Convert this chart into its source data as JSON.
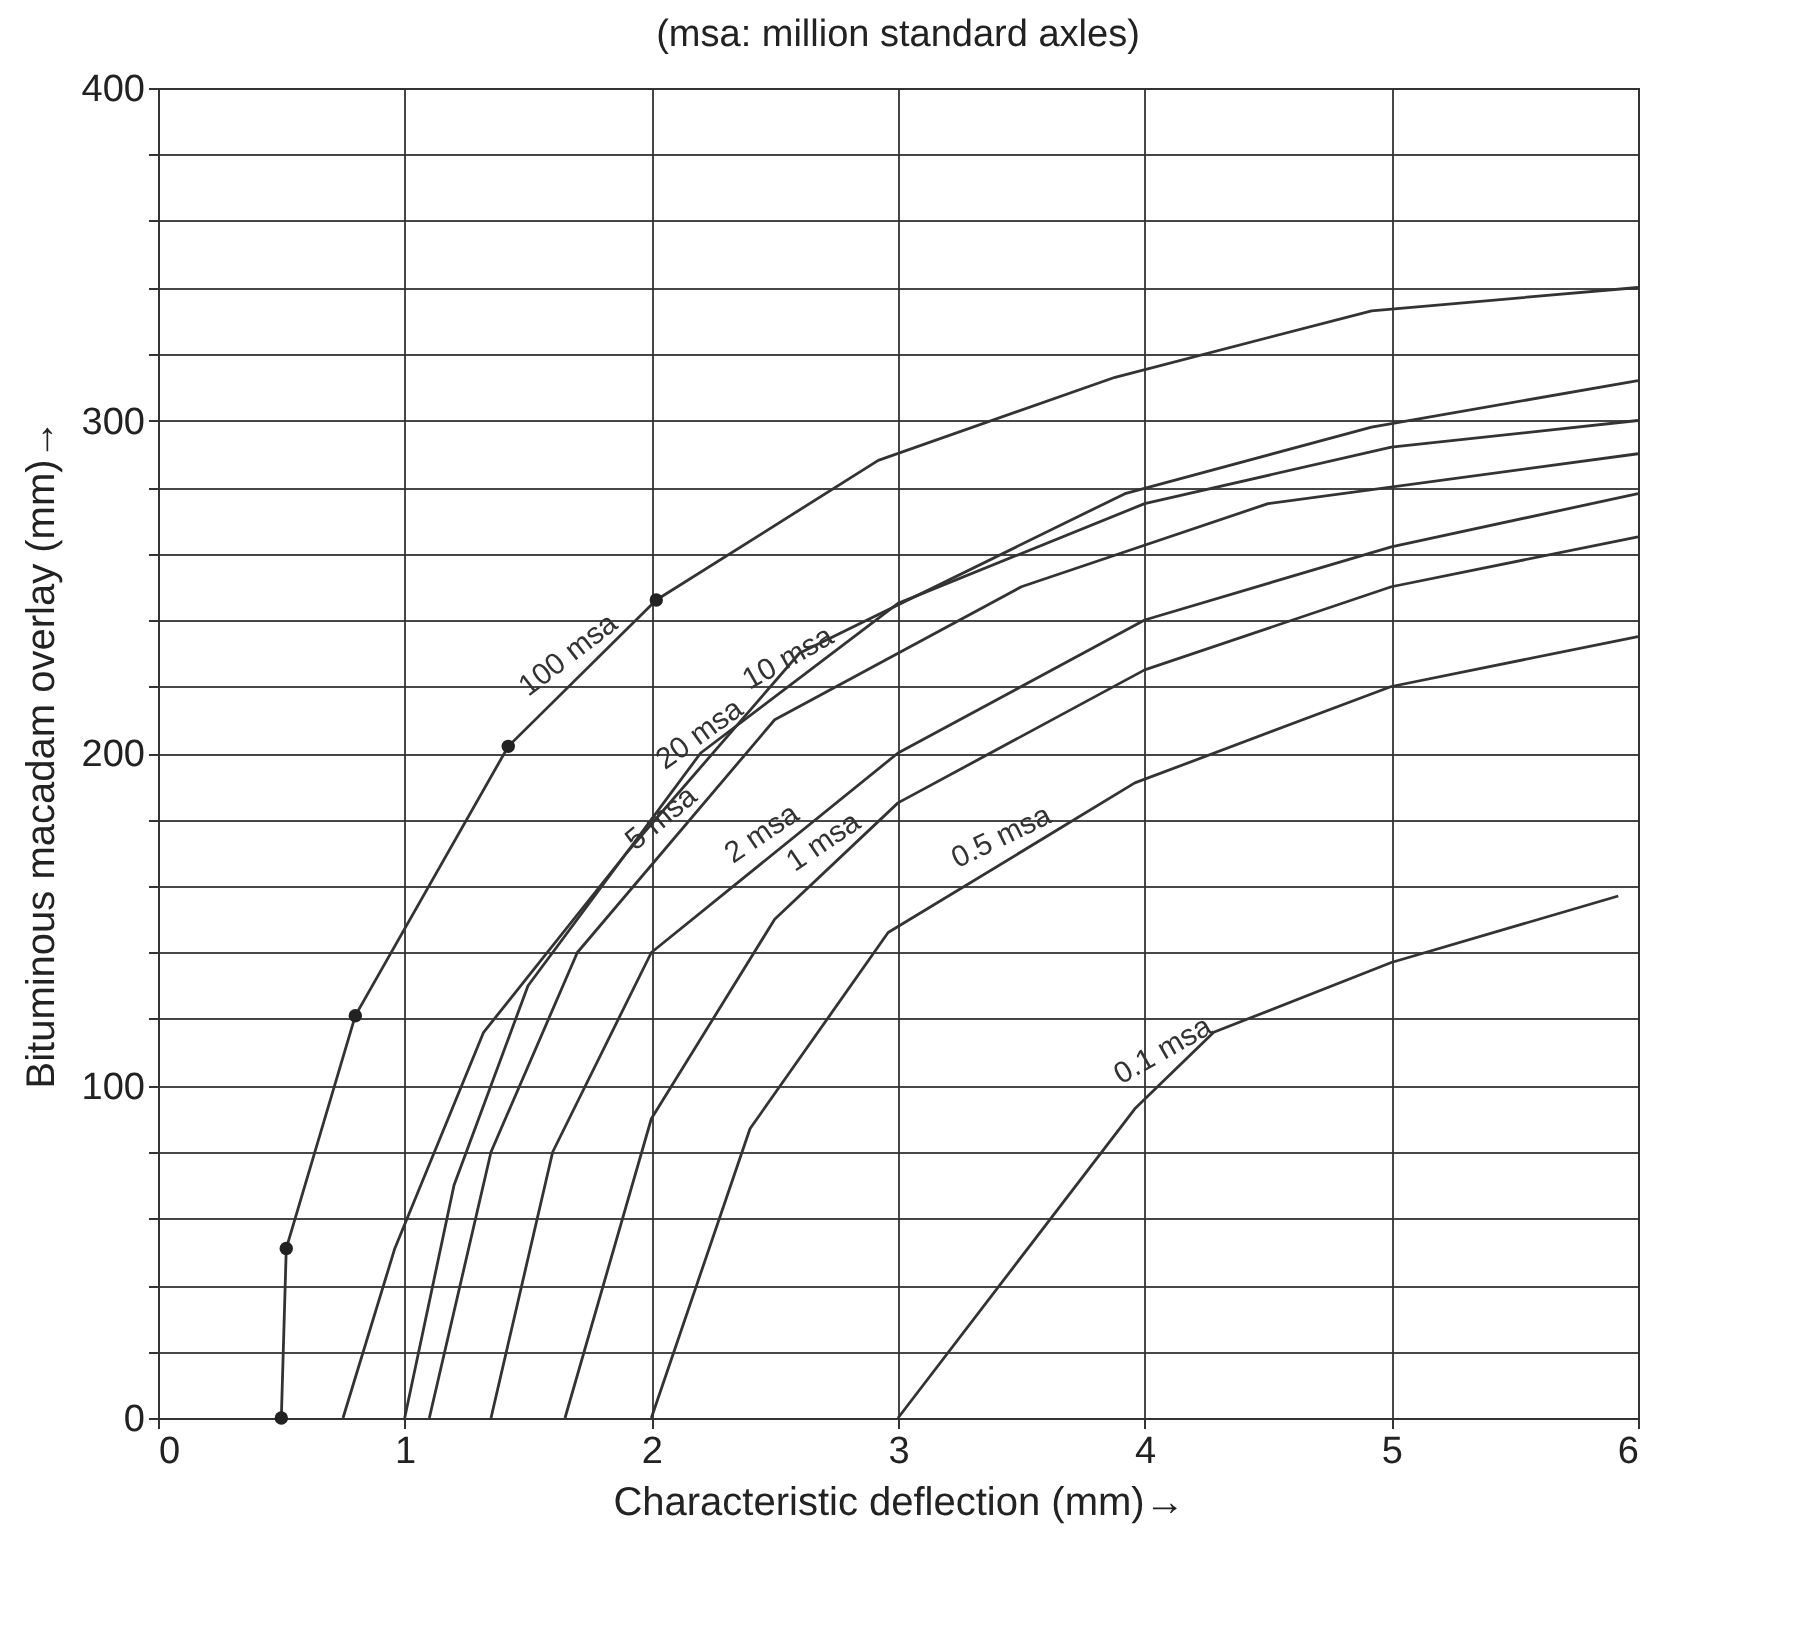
{
  "chart_data": {
    "type": "line",
    "title": "(msa: million standard axles)",
    "xlabel": "Characteristic deflection (mm)→",
    "ylabel": "Bituminous macadam overlay (mm)→",
    "xlim": [
      0,
      6
    ],
    "ylim": [
      0,
      400
    ],
    "xticks": [
      0,
      1,
      2,
      3,
      4,
      5,
      6
    ],
    "yticks": [
      0,
      {
        "value": 20,
        "label": null
      },
      {
        "value": 40,
        "label": null
      },
      {
        "value": 60,
        "label": null
      },
      {
        "value": 80,
        "label": null
      },
      100,
      {
        "value": 120,
        "label": null
      },
      {
        "value": 140,
        "label": null
      },
      {
        "value": 160,
        "label": null
      },
      {
        "value": 180,
        "label": null
      },
      200,
      {
        "value": 220,
        "label": null
      },
      {
        "value": 240,
        "label": null
      },
      {
        "value": 260,
        "label": null
      },
      {
        "value": 280,
        "label": null
      },
      300,
      {
        "value": 320,
        "label": null
      },
      {
        "value": 340,
        "label": null
      },
      {
        "value": 360,
        "label": null
      },
      {
        "value": 380,
        "label": null
      },
      400
    ],
    "grid": true,
    "line_style": "solid",
    "series": [
      {
        "name": "100 msa",
        "color": "#333333",
        "x": [
          0.5,
          0.52,
          0.8,
          1.42,
          2.02,
          2.92,
          3.88,
          4.92,
          6
        ],
        "values": [
          0,
          51,
          121,
          202,
          246,
          288,
          313,
          333,
          340
        ]
      },
      {
        "name": "20 msa",
        "color": "#333333",
        "x": [
          0.75,
          0.96,
          1.32,
          1.9,
          2.6,
          3.92,
          4.92,
          6
        ],
        "values": [
          0,
          51,
          116,
          170,
          230,
          278,
          298,
          312
        ]
      },
      {
        "name": "10 msa",
        "color": "#333333",
        "x": [
          1.0,
          1.2,
          1.5,
          2.2,
          3,
          4,
          5,
          6
        ],
        "values": [
          0,
          70,
          130,
          200,
          245,
          275,
          292,
          300
        ]
      },
      {
        "name": "5 msa",
        "color": "#333333",
        "x": [
          1.1,
          1.35,
          1.7,
          2.5,
          3.5,
          4.5,
          6
        ],
        "values": [
          0,
          80,
          140,
          210,
          250,
          275,
          290
        ]
      },
      {
        "name": "2 msa",
        "color": "#333333",
        "x": [
          1.35,
          1.6,
          2.0,
          3,
          4,
          5,
          6
        ],
        "values": [
          0,
          80,
          140,
          200,
          240,
          262,
          278
        ]
      },
      {
        "name": "1 msa",
        "color": "#333333",
        "x": [
          1.65,
          2.0,
          2.5,
          3,
          4,
          5,
          6
        ],
        "values": [
          0,
          90,
          150,
          185,
          225,
          250,
          265
        ]
      },
      {
        "name": "0.5 msa",
        "color": "#333333",
        "x": [
          2.0,
          2.4,
          2.96,
          3.96,
          5,
          6
        ],
        "values": [
          0,
          87,
          146,
          191,
          220,
          235
        ]
      },
      {
        "name": "0.1 msa",
        "color": "#333333",
        "x": [
          3.0,
          3.96,
          4.28,
          5.0,
          5.92
        ],
        "values": [
          0,
          93,
          116,
          137,
          157
        ]
      },
      {
        "type": "scatter",
        "marker": "circle",
        "color": "#222222",
        "x": [
          0.5,
          0.52,
          0.8,
          1.42,
          2.02
        ],
        "values": [
          0,
          51,
          121,
          202,
          246
        ]
      }
    ]
  }
}
